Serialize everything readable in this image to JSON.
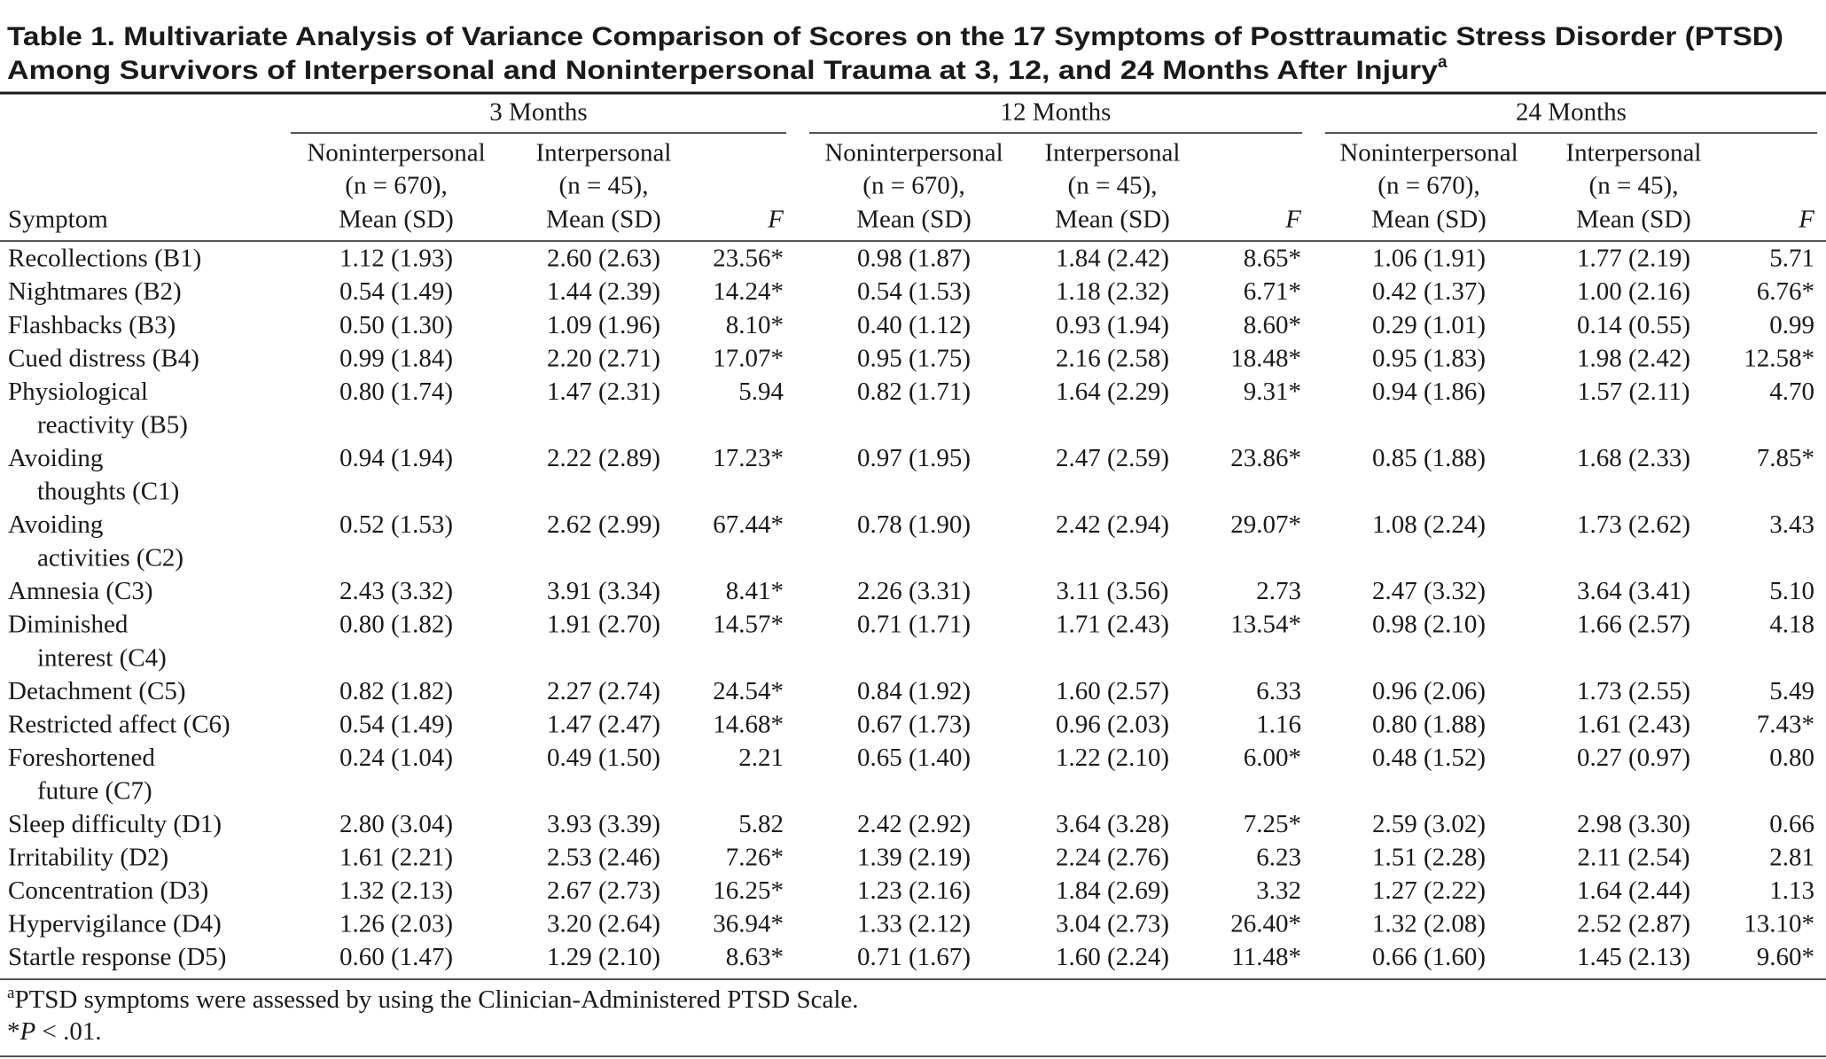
{
  "title_lines": [
    "Table 1. Multivariate Analysis of Variance Comparison of Scores on the 17 Symptoms of Posttraumatic Stress Disorder (PTSD)",
    "Among Survivors of Interpersonal and Noninterpersonal Trauma at 3, 12, and 24 Months After Injury"
  ],
  "title_superscript": "a",
  "table": {
    "symptom_header": "Symptom",
    "groups": [
      {
        "label": "3 Months",
        "columns": [
          {
            "lines": [
              "Noninterpersonal",
              "(n = 670),",
              "Mean (SD)"
            ]
          },
          {
            "lines": [
              "Interpersonal",
              "(n = 45),",
              "Mean (SD)"
            ]
          },
          {
            "lines": [
              "F"
            ]
          }
        ]
      },
      {
        "label": "12 Months",
        "columns": [
          {
            "lines": [
              "Noninterpersonal",
              "(n = 670),",
              "Mean (SD)"
            ]
          },
          {
            "lines": [
              "Interpersonal",
              "(n = 45),",
              "Mean (SD)"
            ]
          },
          {
            "lines": [
              "F"
            ]
          }
        ]
      },
      {
        "label": "24 Months",
        "columns": [
          {
            "lines": [
              "Noninterpersonal",
              "(n = 670),",
              "Mean (SD)"
            ]
          },
          {
            "lines": [
              "Interpersonal",
              "(n = 45),",
              "Mean (SD)"
            ]
          },
          {
            "lines": [
              "F"
            ]
          }
        ]
      }
    ],
    "rows": [
      {
        "symptom": [
          "Recollections (B1)"
        ],
        "values": [
          "1.12 (1.93)",
          "2.60 (2.63)",
          "23.56*",
          "0.98 (1.87)",
          "1.84 (2.42)",
          "8.65*",
          "1.06 (1.91)",
          "1.77 (2.19)",
          "5.71"
        ]
      },
      {
        "symptom": [
          "Nightmares (B2)"
        ],
        "values": [
          "0.54 (1.49)",
          "1.44 (2.39)",
          "14.24*",
          "0.54 (1.53)",
          "1.18 (2.32)",
          "6.71*",
          "0.42 (1.37)",
          "1.00 (2.16)",
          "6.76*"
        ]
      },
      {
        "symptom": [
          "Flashbacks (B3)"
        ],
        "values": [
          "0.50 (1.30)",
          "1.09 (1.96)",
          "8.10*",
          "0.40 (1.12)",
          "0.93 (1.94)",
          "8.60*",
          "0.29 (1.01)",
          "0.14 (0.55)",
          "0.99"
        ]
      },
      {
        "symptom": [
          "Cued distress (B4)"
        ],
        "values": [
          "0.99 (1.84)",
          "2.20 (2.71)",
          "17.07*",
          "0.95 (1.75)",
          "2.16 (2.58)",
          "18.48*",
          "0.95 (1.83)",
          "1.98 (2.42)",
          "12.58*"
        ]
      },
      {
        "symptom": [
          "Physiological",
          "reactivity (B5)"
        ],
        "values": [
          "0.80 (1.74)",
          "1.47 (2.31)",
          "5.94",
          "0.82 (1.71)",
          "1.64 (2.29)",
          "9.31*",
          "0.94 (1.86)",
          "1.57 (2.11)",
          "4.70"
        ]
      },
      {
        "symptom": [
          "Avoiding",
          "thoughts (C1)"
        ],
        "values": [
          "0.94 (1.94)",
          "2.22 (2.89)",
          "17.23*",
          "0.97 (1.95)",
          "2.47 (2.59)",
          "23.86*",
          "0.85 (1.88)",
          "1.68 (2.33)",
          "7.85*"
        ]
      },
      {
        "symptom": [
          "Avoiding",
          "activities (C2)"
        ],
        "values": [
          "0.52 (1.53)",
          "2.62 (2.99)",
          "67.44*",
          "0.78 (1.90)",
          "2.42 (2.94)",
          "29.07*",
          "1.08 (2.24)",
          "1.73 (2.62)",
          "3.43"
        ]
      },
      {
        "symptom": [
          "Amnesia (C3)"
        ],
        "values": [
          "2.43 (3.32)",
          "3.91 (3.34)",
          "8.41*",
          "2.26 (3.31)",
          "3.11 (3.56)",
          "2.73",
          "2.47 (3.32)",
          "3.64 (3.41)",
          "5.10"
        ]
      },
      {
        "symptom": [
          "Diminished",
          "interest (C4)"
        ],
        "values": [
          "0.80 (1.82)",
          "1.91 (2.70)",
          "14.57*",
          "0.71 (1.71)",
          "1.71 (2.43)",
          "13.54*",
          "0.98 (2.10)",
          "1.66 (2.57)",
          "4.18"
        ]
      },
      {
        "symptom": [
          "Detachment (C5)"
        ],
        "values": [
          "0.82 (1.82)",
          "2.27 (2.74)",
          "24.54*",
          "0.84 (1.92)",
          "1.60 (2.57)",
          "6.33",
          "0.96 (2.06)",
          "1.73 (2.55)",
          "5.49"
        ]
      },
      {
        "symptom": [
          "Restricted affect (C6)"
        ],
        "values": [
          "0.54 (1.49)",
          "1.47 (2.47)",
          "14.68*",
          "0.67 (1.73)",
          "0.96 (2.03)",
          "1.16",
          "0.80 (1.88)",
          "1.61 (2.43)",
          "7.43*"
        ]
      },
      {
        "symptom": [
          "Foreshortened",
          "future (C7)"
        ],
        "values": [
          "0.24 (1.04)",
          "0.49 (1.50)",
          "2.21",
          "0.65 (1.40)",
          "1.22 (2.10)",
          "6.00*",
          "0.48 (1.52)",
          "0.27 (0.97)",
          "0.80"
        ]
      },
      {
        "symptom": [
          "Sleep difficulty (D1)"
        ],
        "values": [
          "2.80 (3.04)",
          "3.93 (3.39)",
          "5.82",
          "2.42 (2.92)",
          "3.64 (3.28)",
          "7.25*",
          "2.59 (3.02)",
          "2.98 (3.30)",
          "0.66"
        ]
      },
      {
        "symptom": [
          "Irritability (D2)"
        ],
        "values": [
          "1.61 (2.21)",
          "2.53 (2.46)",
          "7.26*",
          "1.39 (2.19)",
          "2.24 (2.76)",
          "6.23",
          "1.51 (2.28)",
          "2.11 (2.54)",
          "2.81"
        ]
      },
      {
        "symptom": [
          "Concentration (D3)"
        ],
        "values": [
          "1.32 (2.13)",
          "2.67 (2.73)",
          "16.25*",
          "1.23 (2.16)",
          "1.84 (2.69)",
          "3.32",
          "1.27 (2.22)",
          "1.64 (2.44)",
          "1.13"
        ]
      },
      {
        "symptom": [
          "Hypervigilance (D4)"
        ],
        "values": [
          "1.26 (2.03)",
          "3.20 (2.64)",
          "36.94*",
          "1.33 (2.12)",
          "3.04 (2.73)",
          "26.40*",
          "1.32 (2.08)",
          "2.52 (2.87)",
          "13.10*"
        ]
      },
      {
        "symptom": [
          "Startle response (D5)"
        ],
        "values": [
          "0.60 (1.47)",
          "1.29 (2.10)",
          "8.63*",
          "0.71 (1.67)",
          "1.60 (2.24)",
          "11.48*",
          "0.66 (1.60)",
          "1.45 (2.13)",
          "9.60*"
        ]
      }
    ]
  },
  "footnotes": [
    {
      "marker": "a",
      "text": "PTSD symptoms were assessed by using the Clinician-Administered PTSD Scale."
    },
    {
      "marker": "*",
      "italic": "P",
      "text": " < .01."
    }
  ]
}
